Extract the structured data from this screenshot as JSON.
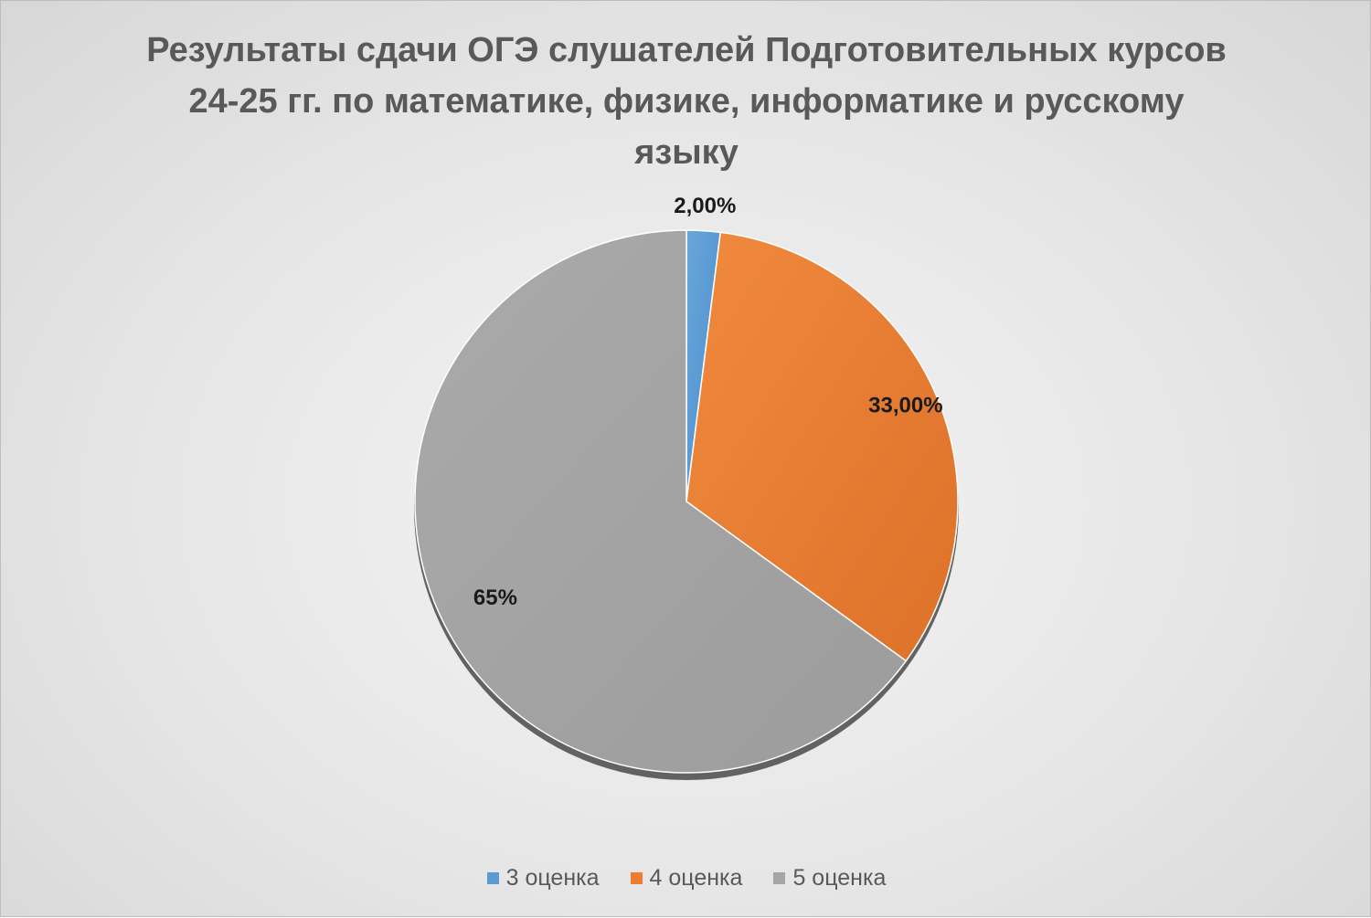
{
  "chart_data": {
    "type": "pie",
    "title": "Результаты сдачи ОГЭ слушателей Подготовительных курсов 24-25 гг. по математике, физике, информатике и русскому языку",
    "categories": [
      "3 оценка",
      "4 оценка",
      "5 оценка"
    ],
    "values": [
      2,
      33,
      65
    ],
    "data_labels": [
      "2,00%",
      "33,00%",
      "65%"
    ],
    "colors": [
      "#5b9bd5",
      "#ed7d31",
      "#a5a5a5"
    ],
    "legend_position": "bottom"
  }
}
